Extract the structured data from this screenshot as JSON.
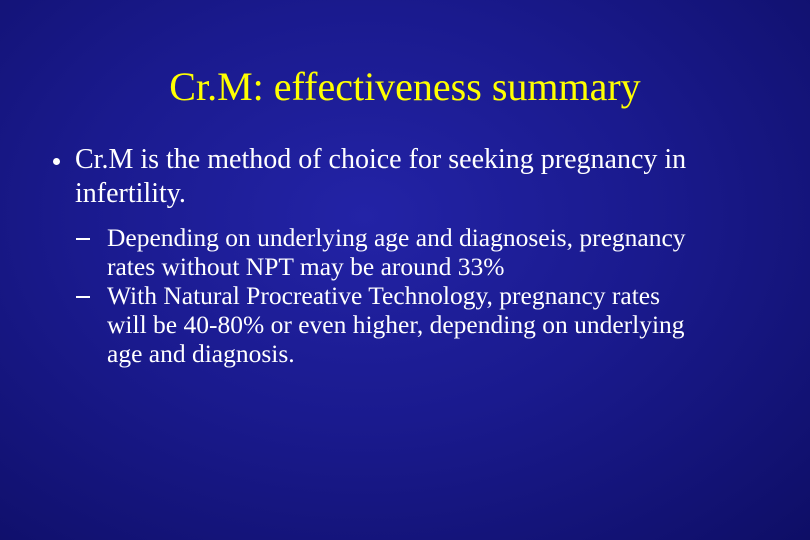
{
  "title": "Cr.M: effectiveness summary",
  "bullets": [
    {
      "text": "Cr.M is the method of choice for seeking pregnancy in infertility.",
      "sub_bullets": [
        "Depending on underlying age and diagnoseis, pregnancy rates without NPT may be around 33%",
        "With Natural Procreative Technology, pregnancy rates will be 40-80% or even higher, depending on underlying age and diagnosis."
      ]
    }
  ]
}
